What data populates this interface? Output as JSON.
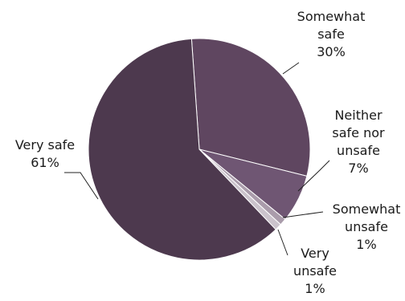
{
  "chart_data": {
    "type": "pie",
    "title": "",
    "legend": "none",
    "slices": [
      {
        "name": "Somewhat safe",
        "label_lines": [
          "Somewhat",
          "safe"
        ],
        "value": 30,
        "value_label": "30%",
        "color": "#5f4660"
      },
      {
        "name": "Neither safe nor unsafe",
        "label_lines": [
          "Neither",
          "safe nor",
          "unsafe"
        ],
        "value": 7,
        "value_label": "7%",
        "color": "#6f5673"
      },
      {
        "name": "Somewhat unsafe",
        "label_lines": [
          "Somewhat",
          "unsafe"
        ],
        "value": 1,
        "value_label": "1%",
        "color": "#aa9cab"
      },
      {
        "name": "Very unsafe",
        "label_lines": [
          "Very",
          "unsafe"
        ],
        "value": 1,
        "value_label": "1%",
        "color": "#cbc3cc"
      },
      {
        "name": "Very safe",
        "label_lines": [
          "Very safe"
        ],
        "value": 61,
        "value_label": "61%",
        "color": "#4d394e"
      }
    ]
  }
}
